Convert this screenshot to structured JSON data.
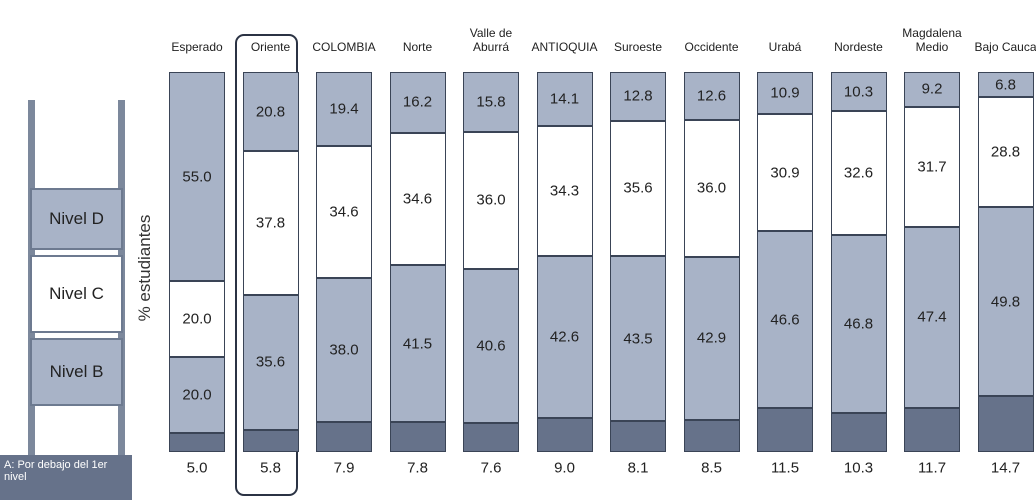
{
  "chart_data": {
    "type": "stacked_bar",
    "y_label": "% estudiantes",
    "ylim": [
      0,
      100
    ],
    "categories": [
      "Esperado",
      "Oriente",
      "COLOMBIA",
      "Norte",
      "Valle de Aburrá",
      "ANTIOQUIA",
      "Suroeste",
      "Occidente",
      "Urabá",
      "Nordeste",
      "Magdalena Medio",
      "Bajo Cauca"
    ],
    "series": [
      {
        "name": "A: Por debajo del 1er nivel",
        "color": "#66728a",
        "values": [
          5,
          5.8,
          7.9,
          7.8,
          7.6,
          9,
          8.1,
          8.5,
          11.5,
          10.3,
          11.7,
          14.7
        ],
        "value_labels": [
          "5.0",
          "5.8",
          "7.9",
          "7.8",
          "7.6",
          "9.0",
          "8.1",
          "8.5",
          "11.5",
          "10.3",
          "11.7",
          "14.7"
        ]
      },
      {
        "name": "Nivel B",
        "color": "#a8b3c7",
        "values": [
          20,
          35.6,
          38,
          41.5,
          40.6,
          42.6,
          43.5,
          42.9,
          46.6,
          46.8,
          47.4,
          49.8
        ],
        "value_labels": [
          "20.0",
          "35.6",
          "38.0",
          "41.5",
          "40.6",
          "42.6",
          "43.5",
          "42.9",
          "46.6",
          "46.8",
          "47.4",
          "49.8"
        ]
      },
      {
        "name": "Nivel C",
        "color": "#ffffff",
        "values": [
          20,
          37.8,
          34.6,
          34.6,
          36,
          34.3,
          35.6,
          36,
          30.9,
          32.6,
          31.7,
          28.8
        ],
        "value_labels": [
          "20.0",
          "37.8",
          "34.6",
          "34.6",
          "36.0",
          "34.3",
          "35.6",
          "36.0",
          "30.9",
          "32.6",
          "31.7",
          "28.8"
        ]
      },
      {
        "name": "Nivel D",
        "color": "#a8b3c7",
        "values": [
          55,
          20.8,
          19.4,
          16.2,
          15.8,
          14.1,
          12.8,
          12.6,
          10.9,
          10.3,
          9.2,
          6.8
        ],
        "value_labels": [
          "55.0",
          "20.8",
          "19.4",
          "16.2",
          "15.8",
          "14.1",
          "12.8",
          "12.6",
          "10.9",
          "10.3",
          "9.2",
          "6.8"
        ]
      }
    ]
  }
}
